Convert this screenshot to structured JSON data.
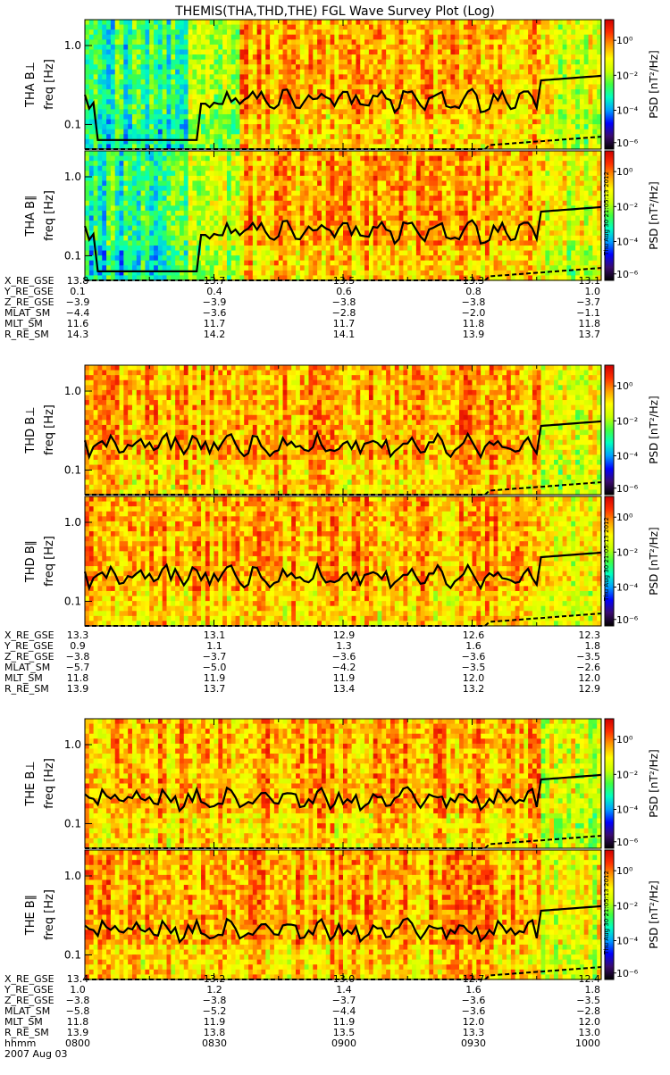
{
  "title": "THEMIS(THA,THD,THE) FGL Wave Survey Plot (Log)",
  "timestamp_label": "Thu Aug 30 21:05:13 2012",
  "colors": {
    "scale": [
      "#000000",
      "#3a0a6e",
      "#0000ff",
      "#00a0ff",
      "#00ffc0",
      "#40ff40",
      "#c8ff00",
      "#ffff00",
      "#ffa000",
      "#ff3000",
      "#d00000"
    ],
    "curve": "#000000"
  },
  "chart_data": {
    "type": "heatmap",
    "ylabel": "freq [Hz]",
    "y_scale": "log",
    "y_ticks": [
      "1.0",
      "0.1"
    ],
    "colorbar": {
      "label": "PSD [nT²/Hz]",
      "scale": "log",
      "tick_labels": [
        "10⁰",
        "10⁻²",
        "10⁻⁴",
        "10⁻⁶"
      ]
    },
    "x_axis": {
      "row_labels": [
        "hhmm",
        "2007 Aug 03"
      ],
      "ticks": [
        "0800",
        "0830",
        "0900",
        "0930",
        "1000"
      ]
    },
    "panels": [
      {
        "probe": "THA",
        "label": "THA B⊥"
      },
      {
        "probe": "THA",
        "label": "THA B∥"
      },
      {
        "probe": "THD",
        "label": "THD B⊥"
      },
      {
        "probe": "THD",
        "label": "THD B∥"
      },
      {
        "probe": "THE",
        "label": "THE B⊥"
      },
      {
        "probe": "THE",
        "label": "THE B∥"
      }
    ],
    "ephemeris": [
      {
        "probe": "THA",
        "rows": [
          {
            "name": "X_RE_GSE",
            "values": [
              "13.8",
              "13.7",
              "13.5",
              "13.3",
              "13.1"
            ]
          },
          {
            "name": "Y_RE_GSE",
            "values": [
              "0.1",
              "0.4",
              "0.6",
              "0.8",
              "1.0"
            ]
          },
          {
            "name": "Z_RE_GSE",
            "values": [
              "−3.9",
              "−3.9",
              "−3.8",
              "−3.8",
              "−3.7"
            ]
          },
          {
            "name": "MLAT_SM",
            "values": [
              "−4.4",
              "−3.6",
              "−2.8",
              "−2.0",
              "−1.1"
            ]
          },
          {
            "name": "MLT_SM",
            "values": [
              "11.6",
              "11.7",
              "11.7",
              "11.8",
              "11.8"
            ]
          },
          {
            "name": "R_RE_SM",
            "values": [
              "14.3",
              "14.2",
              "14.1",
              "13.9",
              "13.7"
            ]
          }
        ]
      },
      {
        "probe": "THD",
        "rows": [
          {
            "name": "X_RE_GSE",
            "values": [
              "13.3",
              "13.1",
              "12.9",
              "12.6",
              "12.3"
            ]
          },
          {
            "name": "Y_RE_GSE",
            "values": [
              "0.9",
              "1.1",
              "1.3",
              "1.6",
              "1.8"
            ]
          },
          {
            "name": "Z_RE_GSE",
            "values": [
              "−3.8",
              "−3.7",
              "−3.6",
              "−3.6",
              "−3.5"
            ]
          },
          {
            "name": "MLAT_SM",
            "values": [
              "−5.7",
              "−5.0",
              "−4.2",
              "−3.5",
              "−2.6"
            ]
          },
          {
            "name": "MLT_SM",
            "values": [
              "11.8",
              "11.9",
              "11.9",
              "12.0",
              "12.0"
            ]
          },
          {
            "name": "R_RE_SM",
            "values": [
              "13.9",
              "13.7",
              "13.4",
              "13.2",
              "12.9"
            ]
          }
        ]
      },
      {
        "probe": "THE",
        "rows": [
          {
            "name": "X_RE_GSE",
            "values": [
              "13.4",
              "13.2",
              "13.0",
              "12.7",
              "12.4"
            ]
          },
          {
            "name": "Y_RE_GSE",
            "values": [
              "1.0",
              "1.2",
              "1.4",
              "1.6",
              "1.8"
            ]
          },
          {
            "name": "Z_RE_GSE",
            "values": [
              "−3.8",
              "−3.8",
              "−3.7",
              "−3.6",
              "−3.5"
            ]
          },
          {
            "name": "MLAT_SM",
            "values": [
              "−5.8",
              "−5.2",
              "−4.4",
              "−3.6",
              "−2.8"
            ]
          },
          {
            "name": "MLT_SM",
            "values": [
              "11.8",
              "11.9",
              "11.9",
              "12.0",
              "12.0"
            ]
          },
          {
            "name": "R_RE_SM",
            "values": [
              "13.9",
              "13.8",
              "13.5",
              "13.3",
              "13.0"
            ]
          }
        ]
      }
    ]
  }
}
